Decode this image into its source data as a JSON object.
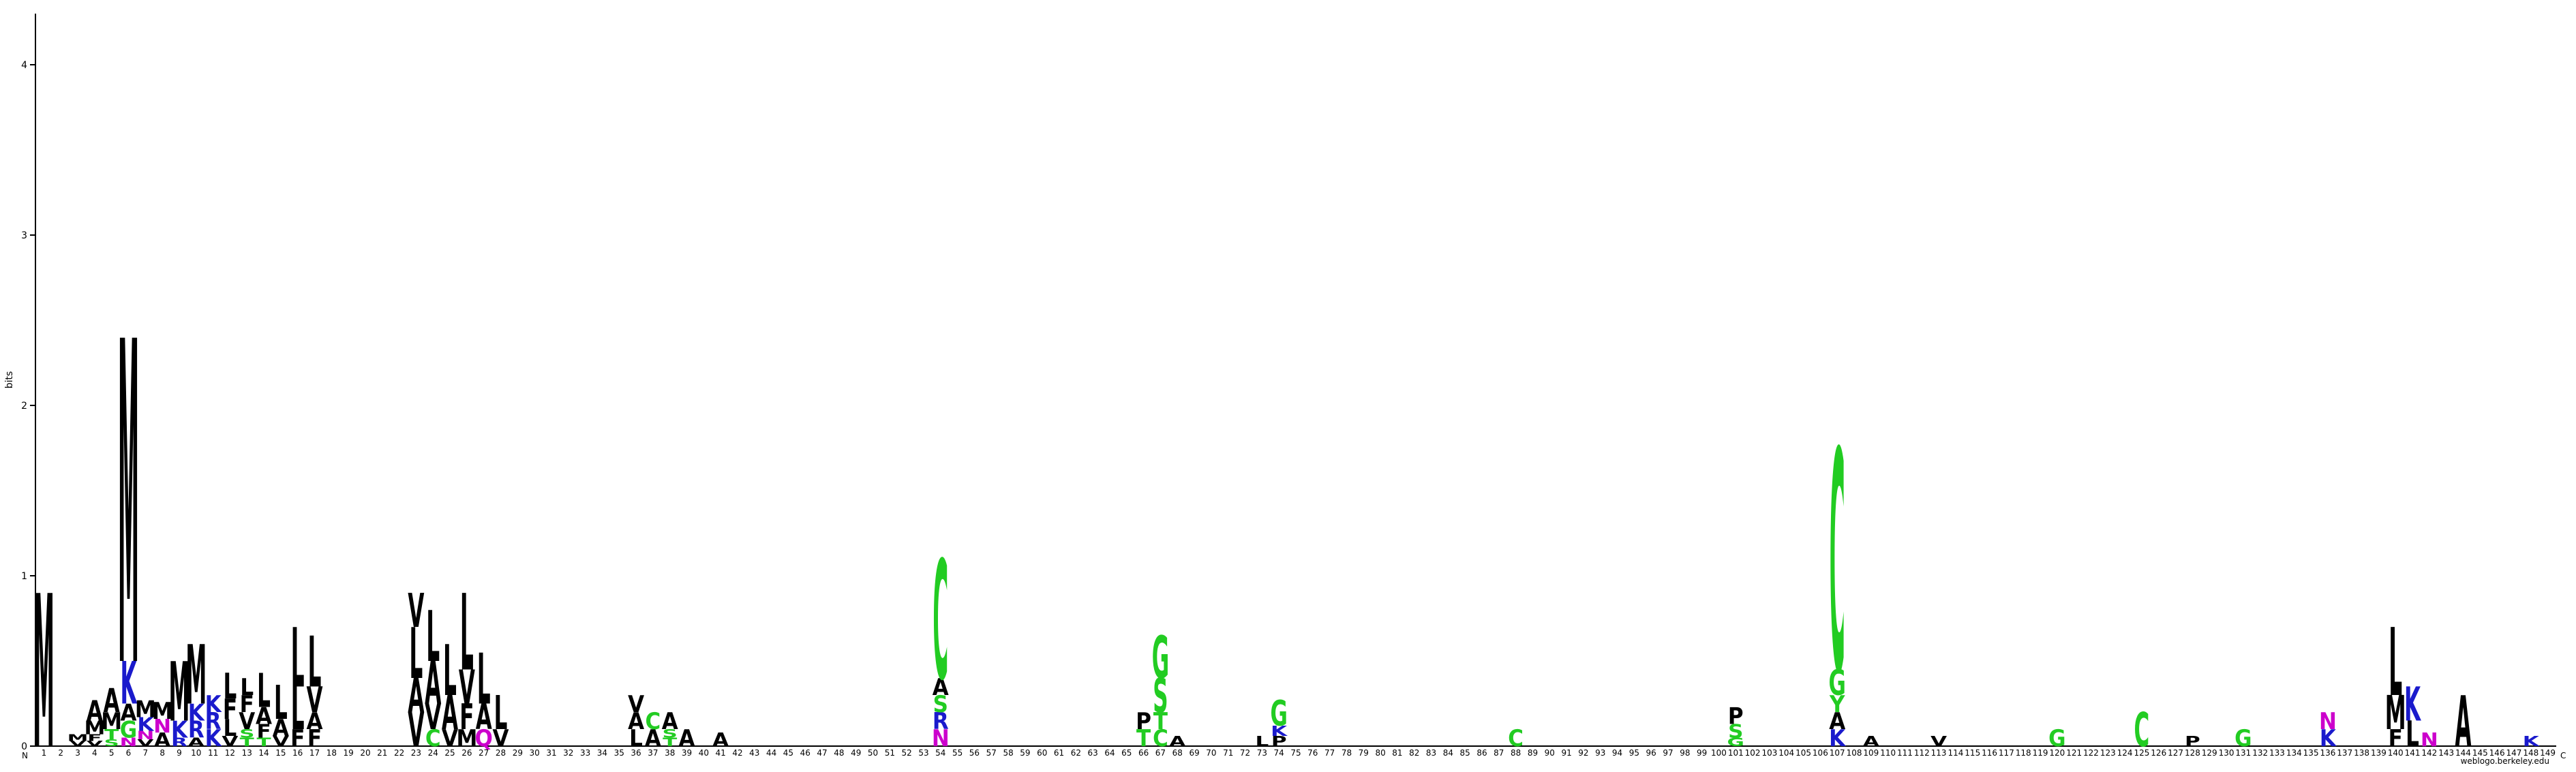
{
  "chart_data": {
    "type": "sequence-logo",
    "ylabel": "bits",
    "ylim": [
      0,
      4.3
    ],
    "yticks": [
      0,
      1,
      2,
      3,
      4
    ],
    "x_start_label": "N",
    "x_end_label": "C",
    "positions": [
      "1",
      "2",
      "3",
      "4",
      "5",
      "6",
      "7",
      "8",
      "9",
      "10",
      "11",
      "12",
      "13",
      "14",
      "15",
      "16",
      "17",
      "18",
      "19",
      "20",
      "21",
      "22",
      "23",
      "24",
      "25",
      "26",
      "27",
      "28",
      "29",
      "30",
      "31",
      "32",
      "33",
      "34",
      "35",
      "36",
      "37",
      "38",
      "39",
      "40",
      "41",
      "42",
      "43",
      "44",
      "45",
      "46",
      "47",
      "48",
      "49",
      "50",
      "51",
      "52",
      "53",
      "54",
      "55",
      "56",
      "57",
      "58",
      "59",
      "60",
      "61",
      "62",
      "63",
      "64",
      "65",
      "66",
      "67",
      "68",
      "69",
      "70",
      "71",
      "72",
      "73",
      "74",
      "75",
      "76",
      "77",
      "78",
      "79",
      "80",
      "81",
      "82",
      "83",
      "84",
      "85",
      "86",
      "87",
      "88",
      "89",
      "90",
      "91",
      "92",
      "93",
      "94",
      "95",
      "96",
      "97",
      "98",
      "99",
      "100",
      "101",
      "102",
      "103",
      "104",
      "105",
      "106",
      "107",
      "108",
      "109",
      "110",
      "111",
      "112",
      "113",
      "114",
      "115",
      "116",
      "117",
      "118",
      "119",
      "120",
      "121",
      "122",
      "123",
      "124",
      "125",
      "126",
      "127",
      "128",
      "129",
      "130",
      "131",
      "132",
      "133",
      "134",
      "135",
      "136",
      "137",
      "138",
      "139",
      "140",
      "141",
      "142",
      "143",
      "144",
      "145",
      "146",
      "147",
      "148",
      "149"
    ],
    "stacks": {
      "1": [
        [
          "M",
          0.9
        ]
      ],
      "3": [
        [
          "V",
          0.03
        ],
        [
          "M",
          0.04
        ]
      ],
      "4": [
        [
          "V",
          0.03
        ],
        [
          "F",
          0.04
        ],
        [
          "M",
          0.08
        ],
        [
          "A",
          0.12
        ]
      ],
      "5": [
        [
          "S",
          0.04
        ],
        [
          "T",
          0.06
        ],
        [
          "M",
          0.1
        ],
        [
          "A",
          0.14
        ]
      ],
      "6": [
        [
          "N",
          0.05
        ],
        [
          "G",
          0.1
        ],
        [
          "A",
          0.1
        ],
        [
          "K",
          0.25
        ],
        [
          "M",
          1.9
        ]
      ],
      "7": [
        [
          "V",
          0.04
        ],
        [
          "N",
          0.05
        ],
        [
          "K",
          0.08
        ],
        [
          "M",
          0.1
        ]
      ],
      "8": [
        [
          "A",
          0.08
        ],
        [
          "N",
          0.08
        ],
        [
          "M",
          0.1
        ]
      ],
      "9": [
        [
          "R",
          0.05
        ],
        [
          "K",
          0.1
        ],
        [
          "M",
          0.35
        ]
      ],
      "10": [
        [
          "A",
          0.05
        ],
        [
          "R",
          0.1
        ],
        [
          "K",
          0.1
        ],
        [
          "M",
          0.35
        ]
      ],
      "11": [
        [
          "K",
          0.1
        ],
        [
          "R",
          0.1
        ],
        [
          "K",
          0.1
        ]
      ],
      "12": [
        [
          "V",
          0.06
        ],
        [
          "L",
          0.1
        ],
        [
          "F",
          0.12
        ],
        [
          "L",
          0.15
        ]
      ],
      "13": [
        [
          "T",
          0.05
        ],
        [
          "S",
          0.05
        ],
        [
          "V",
          0.1
        ],
        [
          "F",
          0.1
        ],
        [
          "L",
          0.1
        ]
      ],
      "14": [
        [
          "T",
          0.05
        ],
        [
          "F",
          0.08
        ],
        [
          "A",
          0.1
        ],
        [
          "L",
          0.2
        ]
      ],
      "15": [
        [
          "V",
          0.06
        ],
        [
          "A",
          0.1
        ],
        [
          "L",
          0.2
        ]
      ],
      "16": [
        [
          "F",
          0.1
        ],
        [
          "L",
          0.25
        ],
        [
          "L",
          0.35
        ]
      ],
      "17": [
        [
          "F",
          0.1
        ],
        [
          "A",
          0.1
        ],
        [
          "V",
          0.15
        ],
        [
          "L",
          0.3
        ]
      ],
      "23": [
        [
          "V",
          0.2
        ],
        [
          "A",
          0.2
        ],
        [
          "L",
          0.3
        ],
        [
          "V",
          0.2
        ]
      ],
      "24": [
        [
          "C",
          0.1
        ],
        [
          "V",
          0.15
        ],
        [
          "A",
          0.25
        ],
        [
          "L",
          0.3
        ]
      ],
      "25": [
        [
          "V",
          0.1
        ],
        [
          "A",
          0.2
        ],
        [
          "L",
          0.3
        ]
      ],
      "26": [
        [
          "M",
          0.1
        ],
        [
          "F",
          0.15
        ],
        [
          "V",
          0.2
        ],
        [
          "L",
          0.45
        ]
      ],
      "27": [
        [
          "Q",
          0.1
        ],
        [
          "A",
          0.15
        ],
        [
          "L",
          0.3
        ]
      ],
      "28": [
        [
          "V",
          0.1
        ],
        [
          "L",
          0.2
        ]
      ],
      "36": [
        [
          "L",
          0.1
        ],
        [
          "A",
          0.1
        ],
        [
          "V",
          0.1
        ]
      ],
      "37": [
        [
          "A",
          0.1
        ],
        [
          "C",
          0.1
        ]
      ],
      "38": [
        [
          "T",
          0.05
        ],
        [
          "S",
          0.05
        ],
        [
          "A",
          0.1
        ]
      ],
      "39": [
        [
          "A",
          0.1
        ]
      ],
      "41": [
        [
          "A",
          0.08
        ]
      ],
      "54": [
        [
          "N",
          0.1
        ],
        [
          "R",
          0.1
        ],
        [
          "S",
          0.1
        ],
        [
          "A",
          0.1
        ],
        [
          "C",
          0.7
        ]
      ],
      "66": [
        [
          "T",
          0.1
        ],
        [
          "P",
          0.1
        ]
      ],
      "67": [
        [
          "C",
          0.1
        ],
        [
          "T",
          0.1
        ],
        [
          "S",
          0.2
        ],
        [
          "G",
          0.25
        ]
      ],
      "68": [
        [
          "A",
          0.06
        ]
      ],
      "73": [
        [
          "L",
          0.06
        ]
      ],
      "74": [
        [
          "P",
          0.06
        ],
        [
          "K",
          0.06
        ],
        [
          "G",
          0.15
        ]
      ],
      "88": [
        [
          "C",
          0.1
        ]
      ],
      "101": [
        [
          "G",
          0.05
        ],
        [
          "S",
          0.08
        ],
        [
          "P",
          0.1
        ]
      ],
      "107": [
        [
          "K",
          0.1
        ],
        [
          "A",
          0.1
        ],
        [
          "Y",
          0.1
        ],
        [
          "G",
          0.15
        ],
        [
          "C",
          1.3
        ]
      ],
      "109": [
        [
          "A",
          0.06
        ]
      ],
      "113": [
        [
          "V",
          0.06
        ]
      ],
      "120": [
        [
          "G",
          0.1
        ]
      ],
      "125": [
        [
          "C",
          0.2
        ]
      ],
      "128": [
        [
          "P",
          0.06
        ]
      ],
      "131": [
        [
          "G",
          0.1
        ]
      ],
      "136": [
        [
          "K",
          0.1
        ],
        [
          "N",
          0.1
        ]
      ],
      "140": [
        [
          "F",
          0.1
        ],
        [
          "M",
          0.2
        ],
        [
          "L",
          0.4
        ]
      ],
      "141": [
        [
          "L",
          0.15
        ],
        [
          "K",
          0.2
        ]
      ],
      "142": [
        [
          "N",
          0.08
        ]
      ],
      "144": [
        [
          "A",
          0.3
        ]
      ],
      "148": [
        [
          "K",
          0.06
        ]
      ]
    },
    "colors": {
      "A": "#000000",
      "V": "#000000",
      "L": "#000000",
      "I": "#000000",
      "M": "#000000",
      "F": "#000000",
      "P": "#000000",
      "W": "#000000",
      "G": "#22cc22",
      "S": "#22cc22",
      "T": "#22cc22",
      "C": "#22cc22",
      "Y": "#22cc22",
      "N": "#cc00cc",
      "Q": "#cc00cc",
      "K": "#1a1acc",
      "R": "#1a1acc",
      "H": "#1a1acc",
      "D": "#e61a1a",
      "E": "#e61a1a"
    },
    "grid": false,
    "credit": "weblogo.berkeley.edu"
  }
}
